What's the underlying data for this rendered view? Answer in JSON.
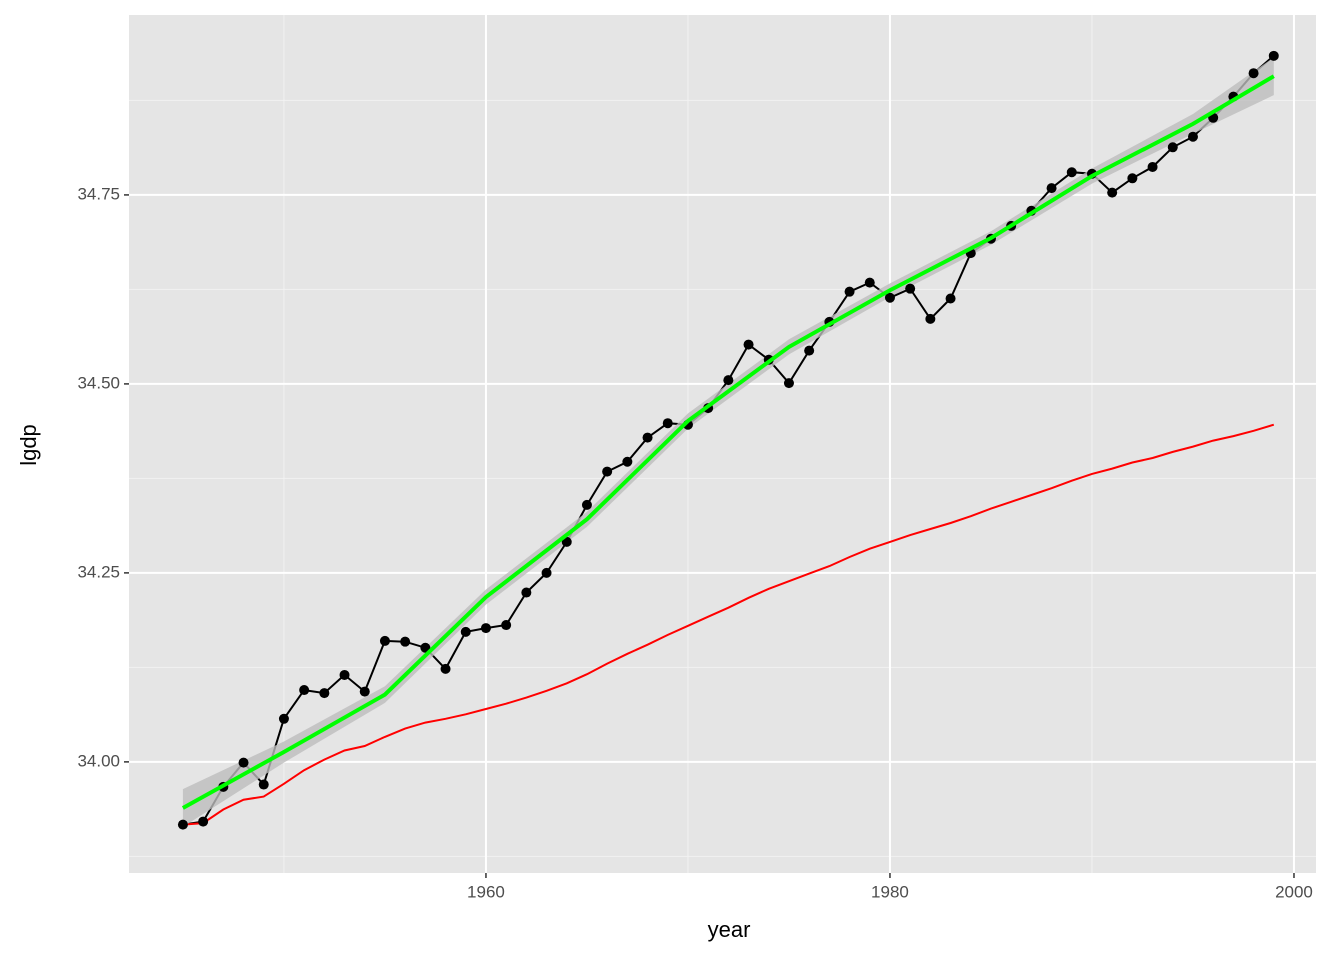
{
  "chart_data": {
    "type": "line",
    "x_label": "year",
    "y_label": "lgdp",
    "x": [
      1945,
      1946,
      1947,
      1948,
      1949,
      1950,
      1951,
      1952,
      1953,
      1954,
      1955,
      1956,
      1957,
      1958,
      1959,
      1960,
      1961,
      1962,
      1963,
      1964,
      1965,
      1966,
      1967,
      1968,
      1969,
      1970,
      1971,
      1972,
      1973,
      1974,
      1975,
      1976,
      1977,
      1978,
      1979,
      1980,
      1981,
      1982,
      1983,
      1984,
      1985,
      1986,
      1987,
      1988,
      1989,
      1990,
      1991,
      1992,
      1993,
      1994,
      1995,
      1996,
      1997,
      1998,
      1999
    ],
    "xlim": [
      1942.33,
      2001.09
    ],
    "ylim": [
      33.853,
      34.988
    ],
    "xticks": [
      1960,
      1980,
      2000
    ],
    "minor_xticks": [
      1950,
      1970,
      1990
    ],
    "yticks": [
      {
        "value": 34,
        "label": "34.00"
      },
      34.25,
      {
        "value": 34.5,
        "label": "34.50"
      },
      34.75
    ],
    "minor_yticks": [
      33.875,
      34.125,
      34.375,
      34.625,
      34.875
    ],
    "grid": true,
    "series": [
      {
        "color": "#000000",
        "points": true,
        "values": [
          33.917,
          33.921,
          33.967,
          33.999,
          33.97,
          34.057,
          34.095,
          34.091,
          34.115,
          34.093,
          34.16,
          34.159,
          34.151,
          34.123,
          34.172,
          34.177,
          34.181,
          34.224,
          34.25,
          34.291,
          34.34,
          34.384,
          34.397,
          34.429,
          34.448,
          34.446,
          34.468,
          34.505,
          34.552,
          34.532,
          34.501,
          34.544,
          34.582,
          34.622,
          34.634,
          34.614,
          34.626,
          34.586,
          34.613,
          34.673,
          34.692,
          34.709,
          34.729,
          34.759,
          34.78,
          34.778,
          34.753,
          34.772,
          34.787,
          34.813,
          34.827,
          34.852,
          34.88,
          34.911,
          34.934
        ]
      },
      {
        "color": "#ff0000",
        "points": false,
        "values": [
          33.917,
          33.919,
          33.937,
          33.95,
          33.954,
          33.971,
          33.989,
          34.003,
          34.015,
          34.021,
          34.033,
          34.044,
          34.052,
          34.057,
          34.063,
          34.07,
          34.077,
          34.085,
          34.094,
          34.104,
          34.116,
          34.13,
          34.143,
          34.155,
          34.168,
          34.18,
          34.192,
          34.204,
          34.217,
          34.229,
          34.239,
          34.249,
          34.259,
          34.271,
          34.282,
          34.291,
          34.3,
          34.308,
          34.316,
          34.325,
          34.335,
          34.344,
          34.353,
          34.362,
          34.372,
          34.381,
          34.388,
          34.396,
          34.402,
          34.41,
          34.417,
          34.425,
          34.431,
          34.438,
          34.446
        ]
      }
    ],
    "smooth": {
      "color": "#00ff00",
      "band_color": "#bdbdbd",
      "x": [
        1945,
        1950,
        1955,
        1960,
        1965,
        1970,
        1975,
        1980,
        1985,
        1990,
        1995,
        1999
      ],
      "values": [
        33.939,
        34.013,
        34.089,
        34.218,
        34.321,
        34.451,
        34.549,
        34.624,
        34.693,
        34.775,
        34.844,
        34.907
      ],
      "lower": [
        33.914,
        33.999,
        34.078,
        34.208,
        34.311,
        34.441,
        34.539,
        34.615,
        34.684,
        34.765,
        34.831,
        34.882
      ],
      "upper": [
        33.964,
        34.027,
        34.1,
        34.228,
        34.331,
        34.461,
        34.559,
        34.633,
        34.702,
        34.785,
        34.857,
        34.932
      ]
    }
  }
}
